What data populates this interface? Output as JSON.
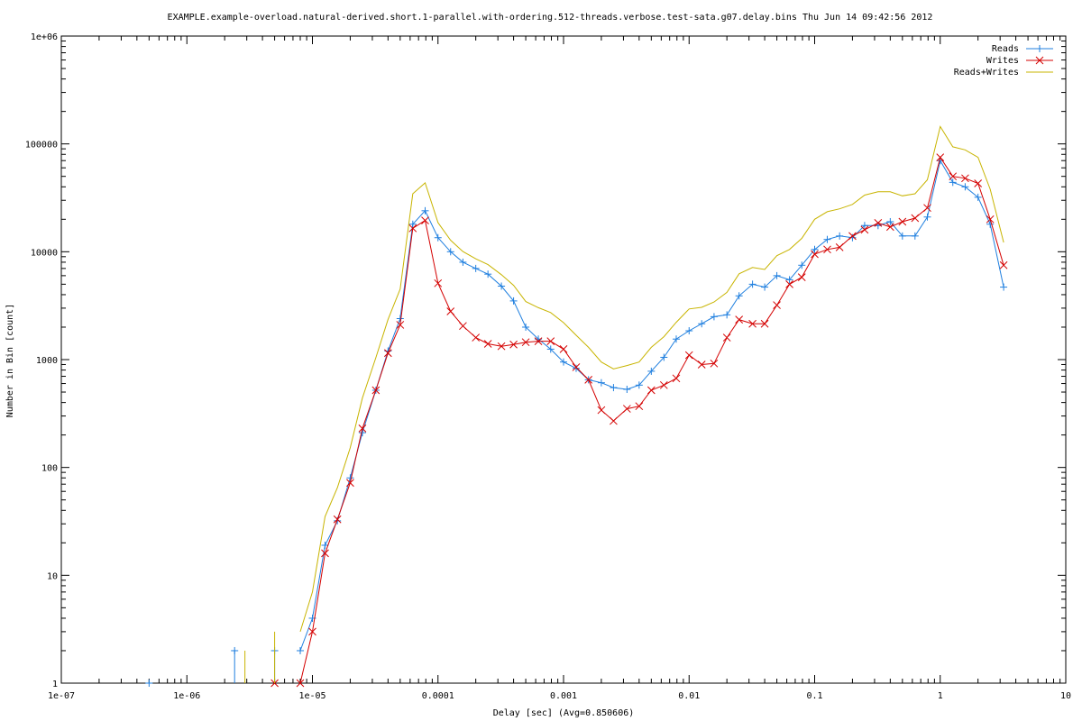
{
  "chart_data": {
    "type": "line",
    "title": "EXAMPLE.example-overload.natural-derived.short.1-parallel.with-ordering.512-threads.verbose.test-sata.g07.delay.bins Thu Jun 14 09:42:56 2012",
    "xlabel": "Delay [sec]  (Avg=0.850606)",
    "ylabel": "Number in Bin [count]",
    "xscale": "log",
    "yscale": "log",
    "xlim": [
      1e-07,
      10
    ],
    "ylim": [
      1,
      1000000
    ],
    "x_ticks": [
      {
        "value": 1e-07,
        "label": "1e-07"
      },
      {
        "value": 1e-06,
        "label": "1e-06"
      },
      {
        "value": 1e-05,
        "label": "1e-05"
      },
      {
        "value": 0.0001,
        "label": "0.0001"
      },
      {
        "value": 0.001,
        "label": "0.001"
      },
      {
        "value": 0.01,
        "label": "0.01"
      },
      {
        "value": 0.1,
        "label": "0.1"
      },
      {
        "value": 1,
        "label": "1"
      },
      {
        "value": 10,
        "label": "10"
      }
    ],
    "y_ticks": [
      {
        "value": 1,
        "label": "1"
      },
      {
        "value": 10,
        "label": "10"
      },
      {
        "value": 100,
        "label": "100"
      },
      {
        "value": 1000,
        "label": "1000"
      },
      {
        "value": 10000,
        "label": "10000"
      },
      {
        "value": 100000,
        "label": "100000"
      },
      {
        "value": 1000000,
        "label": "1e+06"
      }
    ],
    "grid": false,
    "legend_position": "top-right",
    "series": [
      {
        "name": "Reads",
        "color": "#1f7fdf",
        "marker": "plus",
        "impulses": [
          [
            5e-07,
            1
          ],
          [
            2.4e-06,
            2
          ],
          [
            5e-06,
            2
          ]
        ],
        "points": [
          [
            8e-06,
            2
          ],
          [
            1e-05,
            4
          ],
          [
            1.26e-05,
            19
          ],
          [
            1.58e-05,
            32
          ],
          [
            2e-05,
            80
          ],
          [
            2.5e-05,
            210
          ],
          [
            3.2e-05,
            520
          ],
          [
            4e-05,
            1200
          ],
          [
            5e-05,
            2400
          ],
          [
            6.3e-05,
            18000
          ],
          [
            7.9e-05,
            24000
          ],
          [
            0.0001,
            13500
          ],
          [
            0.000126,
            10000
          ],
          [
            0.000158,
            8000
          ],
          [
            0.0002,
            7000
          ],
          [
            0.00025,
            6200
          ],
          [
            0.00032,
            4800
          ],
          [
            0.0004,
            3500
          ],
          [
            0.0005,
            2000
          ],
          [
            0.00063,
            1550
          ],
          [
            0.00079,
            1250
          ],
          [
            0.001,
            950
          ],
          [
            0.00126,
            830
          ],
          [
            0.00158,
            650
          ],
          [
            0.002,
            610
          ],
          [
            0.0025,
            550
          ],
          [
            0.0032,
            530
          ],
          [
            0.004,
            580
          ],
          [
            0.005,
            780
          ],
          [
            0.0063,
            1050
          ],
          [
            0.0079,
            1550
          ],
          [
            0.01,
            1850
          ],
          [
            0.0126,
            2150
          ],
          [
            0.0158,
            2500
          ],
          [
            0.02,
            2600
          ],
          [
            0.025,
            3900
          ],
          [
            0.032,
            5000
          ],
          [
            0.04,
            4700
          ],
          [
            0.05,
            6000
          ],
          [
            0.063,
            5500
          ],
          [
            0.079,
            7500
          ],
          [
            0.1,
            10500
          ],
          [
            0.126,
            13000
          ],
          [
            0.158,
            14000
          ],
          [
            0.2,
            13500
          ],
          [
            0.25,
            17500
          ],
          [
            0.32,
            17500
          ],
          [
            0.4,
            19000
          ],
          [
            0.5,
            14000
          ],
          [
            0.63,
            14000
          ],
          [
            0.79,
            21000
          ],
          [
            1.0,
            70000
          ],
          [
            1.26,
            44000
          ],
          [
            1.58,
            40000
          ],
          [
            2.0,
            32000
          ],
          [
            2.5,
            18000
          ],
          [
            3.2,
            4700
          ]
        ]
      },
      {
        "name": "Writes",
        "color": "#d40000",
        "marker": "cross",
        "impulses": [
          [
            5e-06,
            1
          ]
        ],
        "points": [
          [
            8e-06,
            1
          ],
          [
            1e-05,
            3
          ],
          [
            1.26e-05,
            16
          ],
          [
            1.58e-05,
            33
          ],
          [
            2e-05,
            72
          ],
          [
            2.5e-05,
            230
          ],
          [
            3.2e-05,
            520
          ],
          [
            4e-05,
            1150
          ],
          [
            5e-05,
            2100
          ],
          [
            6.3e-05,
            16500
          ],
          [
            7.9e-05,
            19500
          ],
          [
            0.0001,
            5100
          ],
          [
            0.000126,
            2800
          ],
          [
            0.000158,
            2050
          ],
          [
            0.0002,
            1600
          ],
          [
            0.00025,
            1400
          ],
          [
            0.00032,
            1330
          ],
          [
            0.0004,
            1380
          ],
          [
            0.0005,
            1450
          ],
          [
            0.00063,
            1480
          ],
          [
            0.00079,
            1480
          ],
          [
            0.001,
            1250
          ],
          [
            0.00126,
            850
          ],
          [
            0.00158,
            650
          ],
          [
            0.002,
            340
          ],
          [
            0.0025,
            270
          ],
          [
            0.0032,
            350
          ],
          [
            0.004,
            370
          ],
          [
            0.005,
            520
          ],
          [
            0.0063,
            580
          ],
          [
            0.0079,
            670
          ],
          [
            0.01,
            1100
          ],
          [
            0.0126,
            900
          ],
          [
            0.0158,
            920
          ],
          [
            0.02,
            1600
          ],
          [
            0.025,
            2350
          ],
          [
            0.032,
            2150
          ],
          [
            0.04,
            2150
          ],
          [
            0.05,
            3200
          ],
          [
            0.063,
            5000
          ],
          [
            0.079,
            5800
          ],
          [
            0.1,
            9500
          ],
          [
            0.126,
            10500
          ],
          [
            0.158,
            11000
          ],
          [
            0.2,
            14000
          ],
          [
            0.25,
            16000
          ],
          [
            0.32,
            18500
          ],
          [
            0.4,
            17000
          ],
          [
            0.5,
            19000
          ],
          [
            0.63,
            20500
          ],
          [
            0.79,
            25500
          ],
          [
            1.0,
            75000
          ],
          [
            1.26,
            50000
          ],
          [
            1.58,
            48000
          ],
          [
            2.0,
            43000
          ],
          [
            2.5,
            20000
          ],
          [
            3.2,
            7500
          ]
        ]
      },
      {
        "name": "Reads+Writes",
        "color": "#c8b400",
        "marker": "none",
        "impulses": [
          [
            2.9e-06,
            2
          ],
          [
            5e-06,
            3
          ]
        ],
        "points": [
          [
            8e-06,
            3
          ],
          [
            1e-05,
            7
          ],
          [
            1.26e-05,
            35
          ],
          [
            1.58e-05,
            65
          ],
          [
            2e-05,
            152
          ],
          [
            2.5e-05,
            440
          ],
          [
            3.2e-05,
            1040
          ],
          [
            4e-05,
            2350
          ],
          [
            5e-05,
            4500
          ],
          [
            6.3e-05,
            34500
          ],
          [
            7.9e-05,
            43500
          ],
          [
            0.0001,
            18600
          ],
          [
            0.000126,
            12800
          ],
          [
            0.000158,
            10050
          ],
          [
            0.0002,
            8600
          ],
          [
            0.00025,
            7600
          ],
          [
            0.00032,
            6130
          ],
          [
            0.0004,
            4880
          ],
          [
            0.0005,
            3450
          ],
          [
            0.00063,
            3030
          ],
          [
            0.00079,
            2730
          ],
          [
            0.001,
            2200
          ],
          [
            0.00126,
            1680
          ],
          [
            0.00158,
            1300
          ],
          [
            0.002,
            950
          ],
          [
            0.0025,
            820
          ],
          [
            0.0032,
            880
          ],
          [
            0.004,
            950
          ],
          [
            0.005,
            1300
          ],
          [
            0.0063,
            1630
          ],
          [
            0.0079,
            2220
          ],
          [
            0.01,
            2950
          ],
          [
            0.0126,
            3050
          ],
          [
            0.0158,
            3420
          ],
          [
            0.02,
            4200
          ],
          [
            0.025,
            6250
          ],
          [
            0.032,
            7150
          ],
          [
            0.04,
            6850
          ],
          [
            0.05,
            9200
          ],
          [
            0.063,
            10500
          ],
          [
            0.079,
            13300
          ],
          [
            0.1,
            20000
          ],
          [
            0.126,
            23500
          ],
          [
            0.158,
            25000
          ],
          [
            0.2,
            27500
          ],
          [
            0.25,
            33500
          ],
          [
            0.32,
            36000
          ],
          [
            0.4,
            36000
          ],
          [
            0.5,
            33000
          ],
          [
            0.63,
            34500
          ],
          [
            0.79,
            46500
          ],
          [
            1.0,
            145000
          ],
          [
            1.26,
            94000
          ],
          [
            1.58,
            88000
          ],
          [
            2.0,
            75000
          ],
          [
            2.5,
            38000
          ],
          [
            3.2,
            12200
          ]
        ]
      }
    ]
  }
}
